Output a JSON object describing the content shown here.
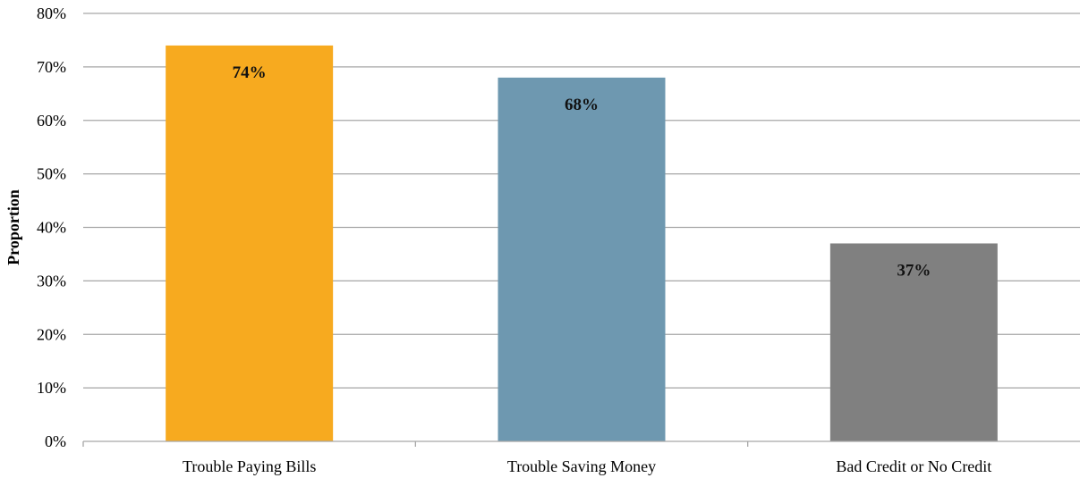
{
  "chart_data": {
    "type": "bar",
    "title": "",
    "xlabel": "",
    "ylabel": "Proportion",
    "categories": [
      "Trouble Paying Bills",
      "Trouble Saving Money",
      "Bad Credit or No Credit"
    ],
    "values": [
      74,
      68,
      37
    ],
    "data_labels": [
      "74%",
      "68%",
      "37%"
    ],
    "ylim": [
      0,
      80
    ],
    "yticks": [
      0,
      10,
      20,
      30,
      40,
      50,
      60,
      70,
      80
    ],
    "ytick_labels": [
      "0%",
      "10%",
      "20%",
      "30%",
      "40%",
      "50%",
      "60%",
      "70%",
      "80%"
    ],
    "grid": true,
    "legend": "none",
    "colors": [
      "#F7AA1F",
      "#6E98B0",
      "#808080"
    ]
  }
}
